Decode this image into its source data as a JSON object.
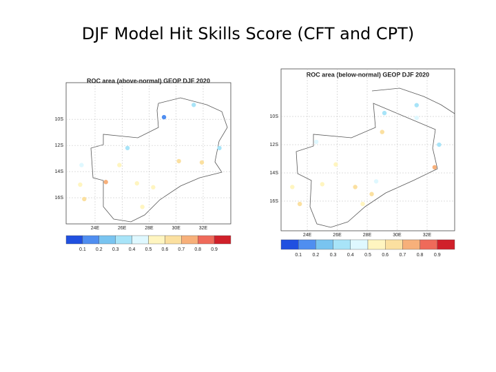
{
  "title": "DJF Model Hit Skills Score (CFT and CPT)",
  "maps": [
    {
      "title": "ROC area (above-normal) GEOP DJF 2020",
      "xlim": [
        21.86,
        34.04
      ],
      "ylim": [
        -18,
        -7.2
      ],
      "xticks": [
        {
          "value": 24,
          "label": "24E"
        },
        {
          "value": 26,
          "label": "26E"
        },
        {
          "value": 28,
          "label": "28E"
        },
        {
          "value": 30,
          "label": "30E"
        },
        {
          "value": 32,
          "label": "32E"
        }
      ],
      "yticks": [
        {
          "value": -10,
          "label": "10S"
        },
        {
          "value": -12,
          "label": "12S"
        },
        {
          "value": -14,
          "label": "14S"
        },
        {
          "value": -16,
          "label": "16S"
        }
      ],
      "colorbar": {
        "lim": [
          0,
          1
        ],
        "colors": [
          "#2050e0",
          "#4f8ef0",
          "#79c4f0",
          "#a8e4f8",
          "#dff8ff",
          "#fff5c0",
          "#fbe0a0",
          "#f7b07a",
          "#ef6a5a",
          "#d0202a"
        ],
        "ticks": [
          0.1,
          0.2,
          0.3,
          0.4,
          0.5,
          0.6,
          0.7,
          0.8,
          0.9
        ]
      },
      "points": [
        {
          "lon": 29.1,
          "lat": -9.84,
          "value": 0.15
        },
        {
          "lon": 31.3,
          "lat": -8.9,
          "value": 0.35
        },
        {
          "lon": 26.4,
          "lat": -12.2,
          "value": 0.35
        },
        {
          "lon": 33.2,
          "lat": -12.2,
          "value": 0.35
        },
        {
          "lon": 30.2,
          "lat": -13.2,
          "value": 0.65
        },
        {
          "lon": 31.9,
          "lat": -13.3,
          "value": 0.65
        },
        {
          "lon": 24.8,
          "lat": -14.8,
          "value": 0.72
        },
        {
          "lon": 23.2,
          "lat": -16.1,
          "value": 0.65
        },
        {
          "lon": 27.1,
          "lat": -14.9,
          "value": 0.55
        },
        {
          "lon": 28.3,
          "lat": -15.2,
          "value": 0.55
        },
        {
          "lon": 23,
          "lat": -13.5,
          "value": 0.45
        },
        {
          "lon": 25.8,
          "lat": -13.5,
          "value": 0.55
        },
        {
          "lon": 22.9,
          "lat": -15,
          "value": 0.55
        },
        {
          "lon": 27.5,
          "lat": -16.7,
          "value": 0.55
        }
      ]
    },
    {
      "title": "ROC area (below-normal) GEOP DJF 2020",
      "xlim": [
        22.25,
        33.84
      ],
      "ylim": [
        -18.1,
        -6.63
      ],
      "xticks": [
        {
          "value": 24,
          "label": "24E"
        },
        {
          "value": 26,
          "label": "26E"
        },
        {
          "value": 28,
          "label": "28E"
        },
        {
          "value": 30,
          "label": "30E"
        },
        {
          "value": 32,
          "label": "32E"
        }
      ],
      "yticks": [
        {
          "value": -10,
          "label": "10S"
        },
        {
          "value": -12,
          "label": "12S"
        },
        {
          "value": -14,
          "label": "14S"
        },
        {
          "value": -16,
          "label": "16S"
        }
      ],
      "colorbar": {
        "lim": [
          0,
          1
        ],
        "colors": [
          "#2050e0",
          "#4f8ef0",
          "#79c4f0",
          "#a8e4f8",
          "#dff8ff",
          "#fff5c0",
          "#fbe0a0",
          "#f7b07a",
          "#ef6a5a",
          "#d0202a"
        ],
        "ticks": [
          0.1,
          0.2,
          0.3,
          0.4,
          0.5,
          0.6,
          0.7,
          0.8,
          0.9
        ]
      },
      "points": [
        {
          "lon": 29.15,
          "lat": -9.76,
          "value": 0.35
        },
        {
          "lon": 31.3,
          "lat": -9.2,
          "value": 0.35
        },
        {
          "lon": 29,
          "lat": -11.1,
          "value": 0.65
        },
        {
          "lon": 31.3,
          "lat": -10.1,
          "value": 0.45
        },
        {
          "lon": 32.8,
          "lat": -12,
          "value": 0.35
        },
        {
          "lon": 32.5,
          "lat": -13.6,
          "value": 0.72
        },
        {
          "lon": 27.2,
          "lat": -15,
          "value": 0.65
        },
        {
          "lon": 28.3,
          "lat": -15.5,
          "value": 0.65
        },
        {
          "lon": 25,
          "lat": -14.8,
          "value": 0.55
        },
        {
          "lon": 23.5,
          "lat": -16.2,
          "value": 0.65
        },
        {
          "lon": 23,
          "lat": -15,
          "value": 0.55
        },
        {
          "lon": 25.9,
          "lat": -13.4,
          "value": 0.55
        },
        {
          "lon": 27.7,
          "lat": -16.2,
          "value": 0.55
        },
        {
          "lon": 28.6,
          "lat": -14.6,
          "value": 0.45
        },
        {
          "lon": 24.6,
          "lat": -11.8,
          "value": 0.45
        }
      ]
    }
  ]
}
